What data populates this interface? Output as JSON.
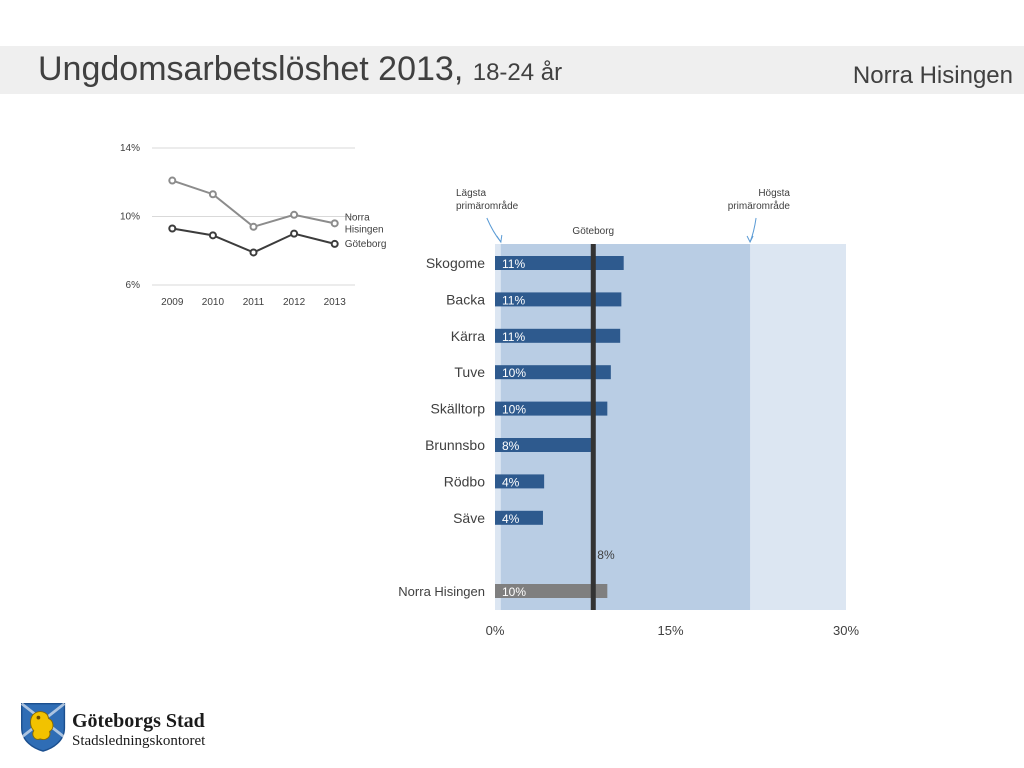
{
  "header": {
    "title": "Ungdomsarbetslöshet 2013,",
    "subtitle": "18-24 år",
    "region": "Norra Hisingen"
  },
  "chart_data": [
    {
      "type": "line",
      "x": [
        "2009",
        "2010",
        "2011",
        "2012",
        "2013"
      ],
      "yticks": [
        "14%",
        "10%",
        "6%"
      ],
      "ylim": [
        6,
        14
      ],
      "grid": true,
      "series": [
        {
          "name": "Norra Hisingen",
          "label_lines": [
            "Norra",
            "Hisingen"
          ],
          "values": [
            12.1,
            11.3,
            9.4,
            10.1,
            9.6
          ],
          "color": "#8c8c8c"
        },
        {
          "name": "Göteborg",
          "label_lines": [
            "Göteborg"
          ],
          "values": [
            9.3,
            8.9,
            7.9,
            9.0,
            8.4
          ],
          "color": "#3c3c3c"
        }
      ]
    },
    {
      "type": "bar",
      "orientation": "horizontal",
      "categories": [
        "Skogome",
        "Backa",
        "Kärra",
        "Tuve",
        "Skälltorp",
        "Brunnsbo",
        "Rödbo",
        "Säve"
      ],
      "values": [
        11,
        11,
        11,
        10,
        10,
        8,
        4,
        4
      ],
      "bar_values": [
        11.0,
        10.8,
        10.7,
        9.9,
        9.6,
        8.2,
        4.2,
        4.1
      ],
      "value_labels": [
        "11%",
        "11%",
        "11%",
        "10%",
        "10%",
        "8%",
        "4%",
        "4%"
      ],
      "total": {
        "label": "Norra Hisingen",
        "value": 9.6,
        "value_label": "10%",
        "color": "#7f7f7f"
      },
      "xticks": [
        "0%",
        "15%",
        "30%"
      ],
      "xlim": [
        0,
        30
      ],
      "bar_color": "#2e5a8e",
      "reference": {
        "label": "Göteborg",
        "value": 8.4,
        "value_label": "8%",
        "color": "#333333"
      },
      "range_min": {
        "label_lines": [
          "Lägsta",
          "primärområde"
        ],
        "value": 0.5
      },
      "range_max": {
        "label_lines": [
          "Högsta",
          "primärområde"
        ],
        "value": 21.8
      },
      "range_colors": {
        "inner": "#b9cde4",
        "outer": "#dce6f2"
      }
    }
  ],
  "footer": {
    "org_name": "Göteborgs Stad",
    "org_unit": "Stadsledningskontoret"
  }
}
